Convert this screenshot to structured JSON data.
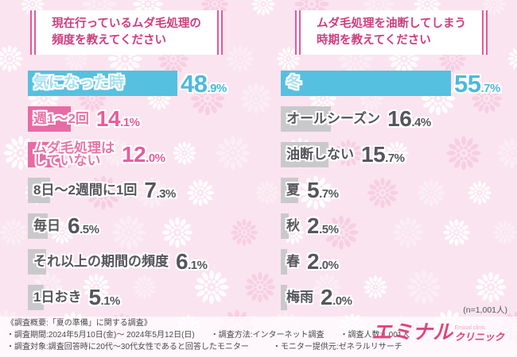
{
  "page": {
    "background": "#fae4ef"
  },
  "colors": {
    "accent_line": "#e7559a",
    "title_text": "#cf3d7f",
    "logo_pink": "#e0457b",
    "logo_light_pink": "#f0a6c6",
    "footer_text": "#4a4a4a",
    "flower_white": "#ffffff",
    "flower_pink": "#f5bfd9"
  },
  "palette": {
    "cyan": {
      "bar": "#55c0e0",
      "label": "#a5dff2",
      "value": "#4db9dd"
    },
    "pink": {
      "bar": "#e76ba4",
      "label": "#e874a8",
      "value": "#e55d9b"
    },
    "gray": {
      "bar": "#c9c9cb",
      "label": "#55555b",
      "value": "#55555b"
    }
  },
  "left_panel": {
    "title": "現在行っているムダ毛処理の\n頻度を教えてください"
  },
  "right_panel": {
    "title": "ムダ毛処理を油断してしまう\n時期を教えてください"
  },
  "chart_data": [
    {
      "type": "bar",
      "orientation": "horizontal",
      "title": "現在行っているムダ毛処理の頻度を教えてください",
      "unit": "%",
      "xlim": [
        0,
        60
      ],
      "categories": [
        "気になった時",
        "週1〜2回",
        "ムダ毛処理は\nしていない",
        "8日〜2週間に1回",
        "毎日",
        "それ以上の期間の頻度",
        "1日おき"
      ],
      "values": [
        48.9,
        14.1,
        12.0,
        7.3,
        6.5,
        6.1,
        5.1
      ],
      "value_labels": [
        "48.9%",
        "14.1%",
        "12.0%",
        "7.3%",
        "6.5%",
        "6.1%",
        "5.1%"
      ],
      "bar_colors": [
        "cyan",
        "pink",
        "pink",
        "gray",
        "gray",
        "gray",
        "gray"
      ]
    },
    {
      "type": "bar",
      "orientation": "horizontal",
      "title": "ムダ毛処理を油断してしまう時期を教えてください",
      "unit": "%",
      "xlim": [
        0,
        60
      ],
      "categories": [
        "冬",
        "オールシーズン",
        "油断しない",
        "夏",
        "秋",
        "春",
        "梅雨"
      ],
      "values": [
        55.7,
        16.4,
        15.7,
        5.7,
        2.5,
        2.0,
        2.0
      ],
      "value_labels": [
        "55.7%",
        "16.4%",
        "15.7%",
        "5.7%",
        "2.5%",
        "2.0%",
        "2.0%"
      ],
      "bar_colors": [
        "cyan",
        "gray",
        "gray",
        "gray",
        "gray",
        "gray",
        "gray"
      ]
    }
  ],
  "sample_note": "(n=1,001人)",
  "footer": {
    "line1": "《調査概要:「夏の準備」に関する調査》",
    "line2": "・調査期間:2024年5月10日(金)〜 2024年5月12日(日)　　・調査方法:インターネット調査　　・調査人数:1,001人",
    "line3": "・調査対象:調査回答時に20代〜30代女性であると回答したモニター　　　・モニター提供元:ゼネラルリサーチ"
  },
  "logo": {
    "main": "エミナル",
    "sub": "クリニック",
    "small": "Eminal clinic"
  }
}
